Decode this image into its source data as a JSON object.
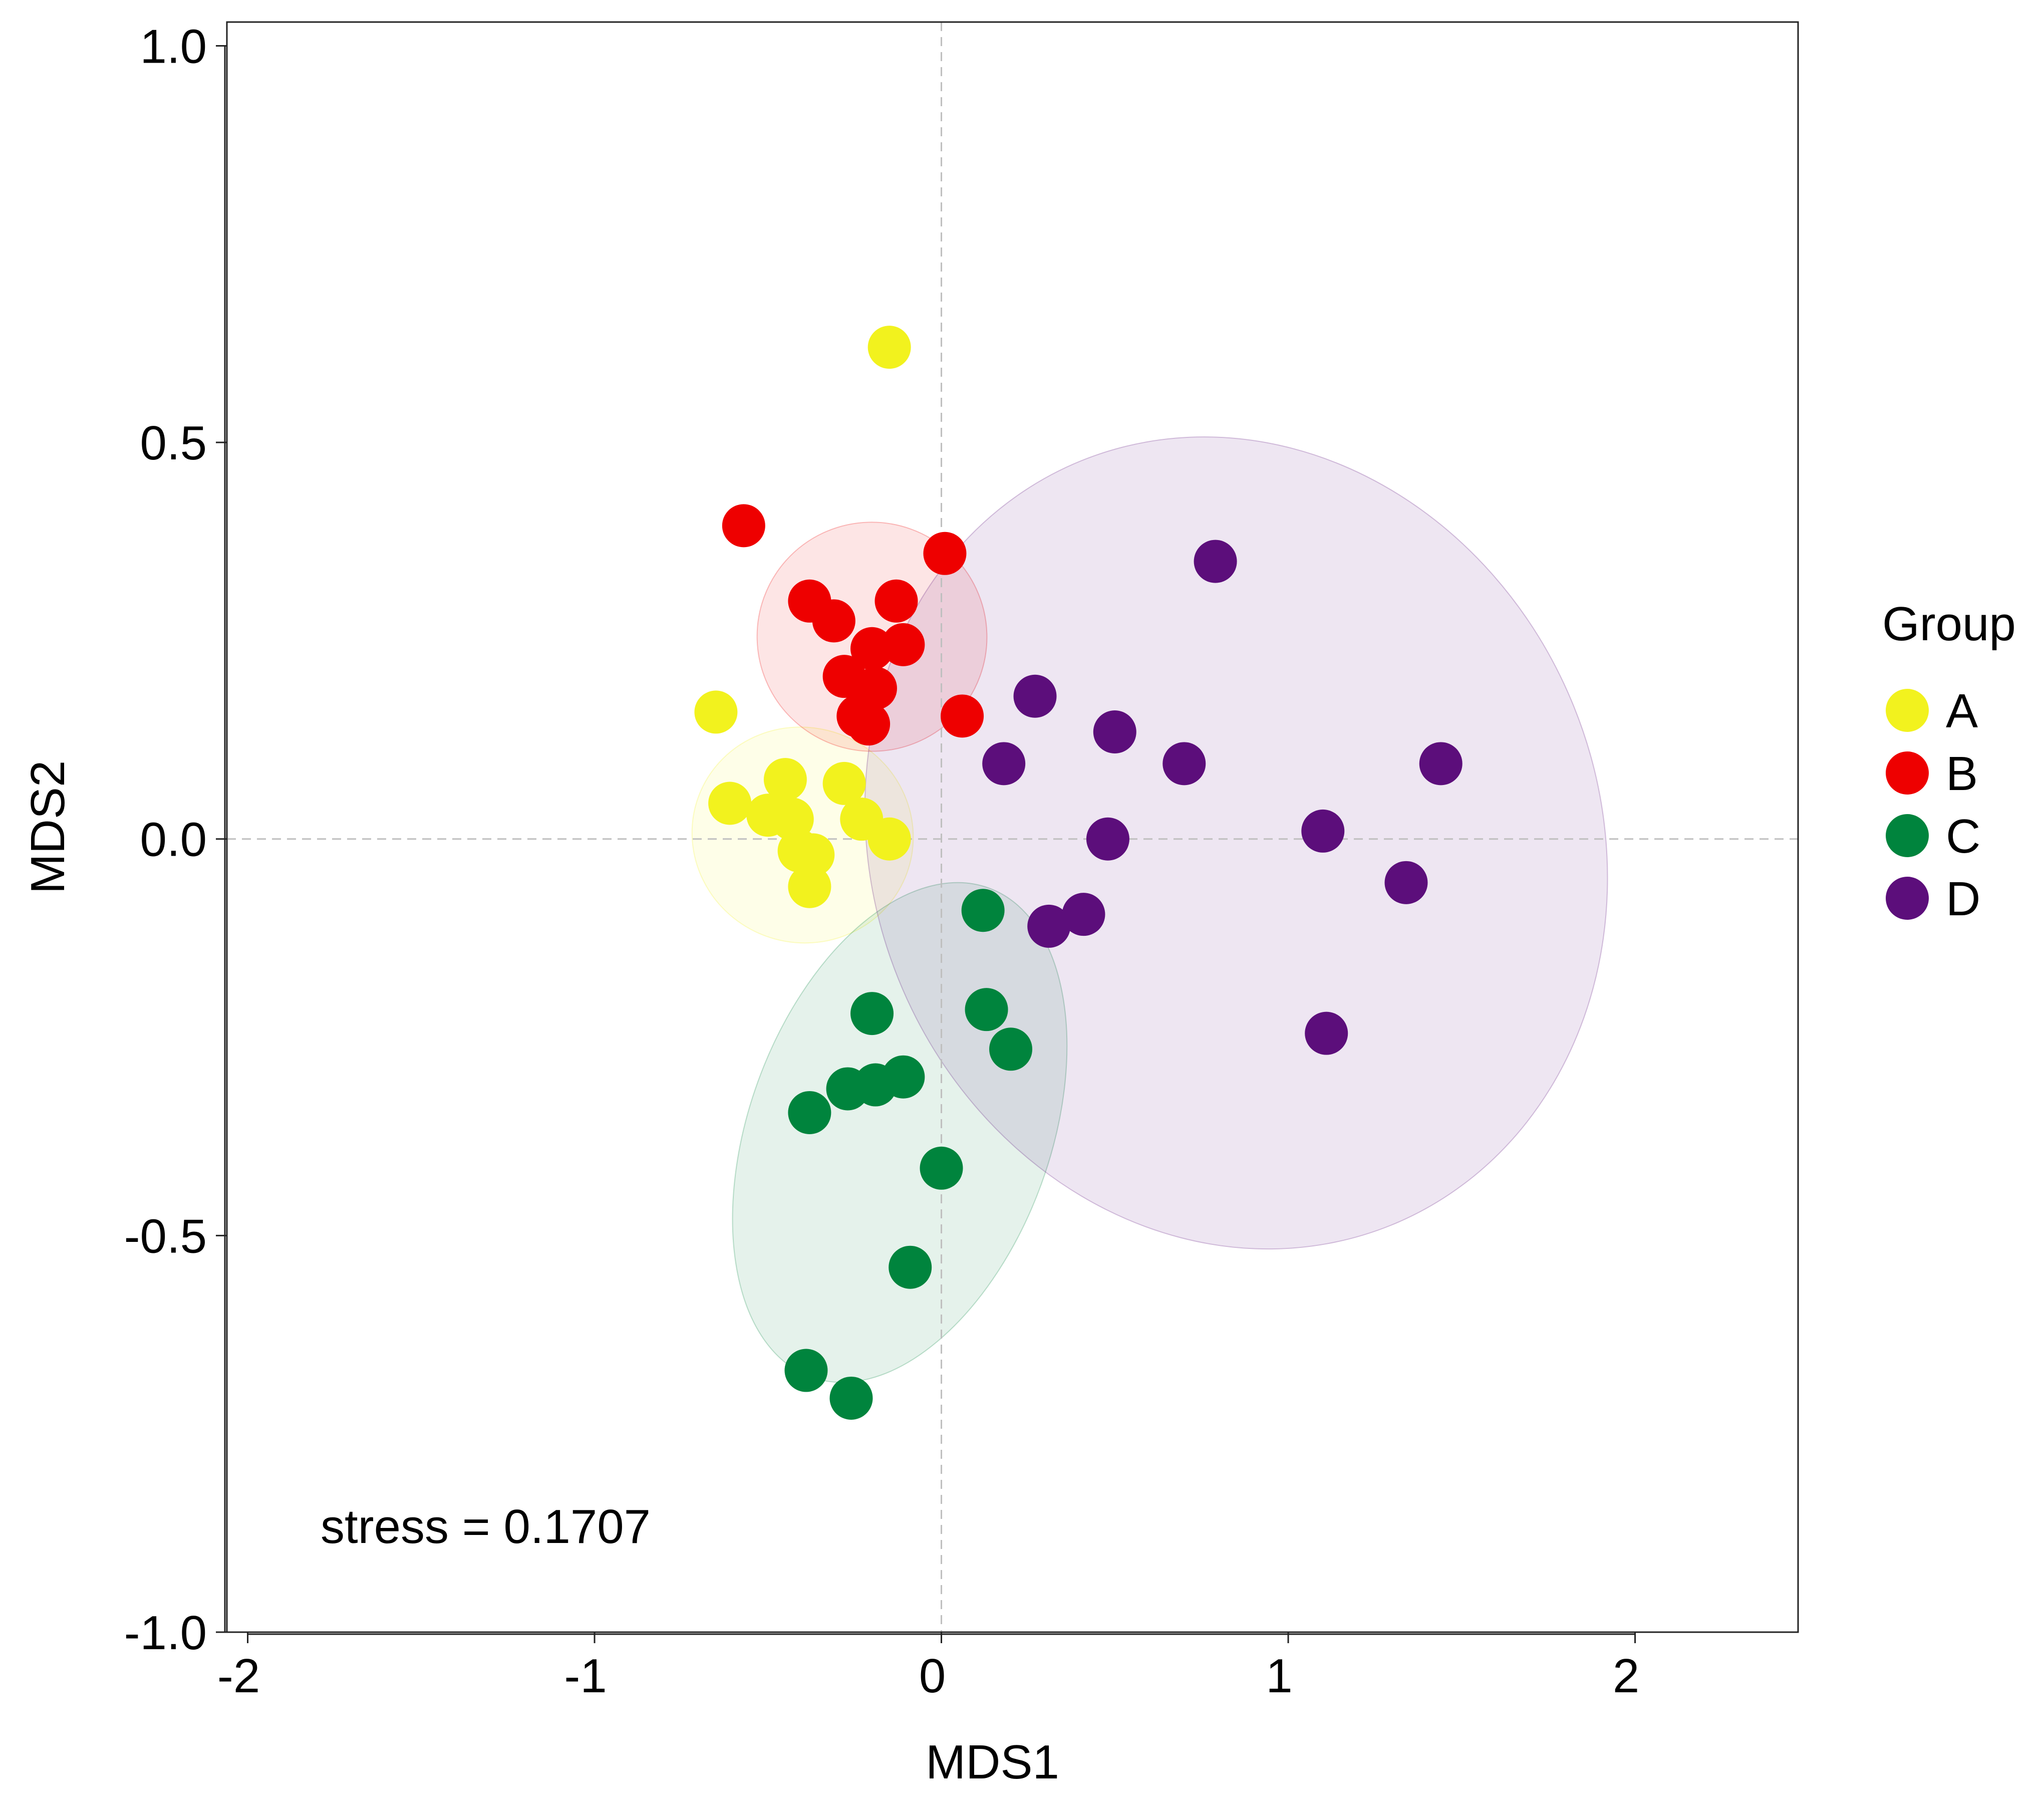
{
  "chart_data": {
    "type": "scatter",
    "title": "",
    "xlabel": "MDS1",
    "ylabel": "MDS2",
    "xlim": [
      -2.06,
      2.47
    ],
    "ylim": [
      -1.0,
      1.03
    ],
    "x_ticks": [
      -2,
      -1,
      0,
      1,
      2
    ],
    "y_ticks": [
      -1.0,
      -0.5,
      0.0,
      0.5,
      1.0
    ],
    "x_tick_labels": [
      "-2",
      "-1",
      "0",
      "1",
      "2"
    ],
    "y_tick_labels": [
      "-1.0",
      "-0.5",
      "0.0",
      "0.5",
      "1.0"
    ],
    "reference_lines": {
      "x": 0,
      "y": 0
    },
    "grid": false,
    "legend": {
      "title": "Group",
      "position": "right"
    },
    "annotation": "stress = 0.1707",
    "series": [
      {
        "name": "A",
        "color": "#F2F21E",
        "points": [
          [
            -0.15,
            0.62
          ],
          [
            -0.65,
            0.16
          ],
          [
            -0.45,
            0.075
          ],
          [
            -0.61,
            0.045
          ],
          [
            -0.28,
            0.07
          ],
          [
            -0.5,
            0.03
          ],
          [
            -0.43,
            0.025
          ],
          [
            -0.23,
            0.025
          ],
          [
            -0.37,
            -0.02
          ],
          [
            -0.41,
            -0.015
          ],
          [
            -0.15,
            0.0
          ],
          [
            -0.38,
            -0.06
          ]
        ],
        "ellipse": {
          "cx": -0.4,
          "cy": 0.005,
          "rx": 0.31,
          "ry": 0.14,
          "angle_deg": -70
        }
      },
      {
        "name": "B",
        "color": "#EE0000",
        "points": [
          [
            -0.57,
            0.395
          ],
          [
            0.01,
            0.36
          ],
          [
            -0.38,
            0.3
          ],
          [
            -0.31,
            0.275
          ],
          [
            -0.13,
            0.3
          ],
          [
            -0.2,
            0.24
          ],
          [
            -0.11,
            0.245
          ],
          [
            -0.28,
            0.205
          ],
          [
            -0.19,
            0.19
          ],
          [
            -0.24,
            0.155
          ],
          [
            -0.21,
            0.145
          ],
          [
            0.06,
            0.155
          ]
        ],
        "ellipse": {
          "cx": -0.2,
          "cy": 0.255,
          "rx": 0.33,
          "ry": 0.145,
          "angle_deg": -70
        }
      },
      {
        "name": "C",
        "color": "#00843D",
        "points": [
          [
            0.12,
            -0.09
          ],
          [
            -0.2,
            -0.22
          ],
          [
            0.13,
            -0.215
          ],
          [
            0.2,
            -0.265
          ],
          [
            -0.11,
            -0.3
          ],
          [
            -0.19,
            -0.31
          ],
          [
            -0.27,
            -0.315
          ],
          [
            -0.38,
            -0.345
          ],
          [
            0.0,
            -0.415
          ],
          [
            -0.09,
            -0.54
          ],
          [
            -0.39,
            -0.67
          ],
          [
            -0.26,
            -0.705
          ]
        ],
        "ellipse": {
          "cx": -0.12,
          "cy": -0.37,
          "rx": 0.75,
          "ry": 0.19,
          "angle_deg": -70
        }
      },
      {
        "name": "D",
        "color": "#5C0E7B",
        "points": [
          [
            0.79,
            0.35
          ],
          [
            0.27,
            0.18
          ],
          [
            0.5,
            0.135
          ],
          [
            0.18,
            0.095
          ],
          [
            0.7,
            0.095
          ],
          [
            1.44,
            0.095
          ],
          [
            1.1,
            0.01
          ],
          [
            0.48,
            0.0
          ],
          [
            1.34,
            -0.055
          ],
          [
            0.41,
            -0.095
          ],
          [
            0.31,
            -0.11
          ],
          [
            1.11,
            -0.245
          ]
        ],
        "ellipse": {
          "cx": 0.85,
          "cy": -0.005,
          "rx": 1.05,
          "ry": 0.52,
          "angle_deg": -22
        }
      }
    ]
  }
}
